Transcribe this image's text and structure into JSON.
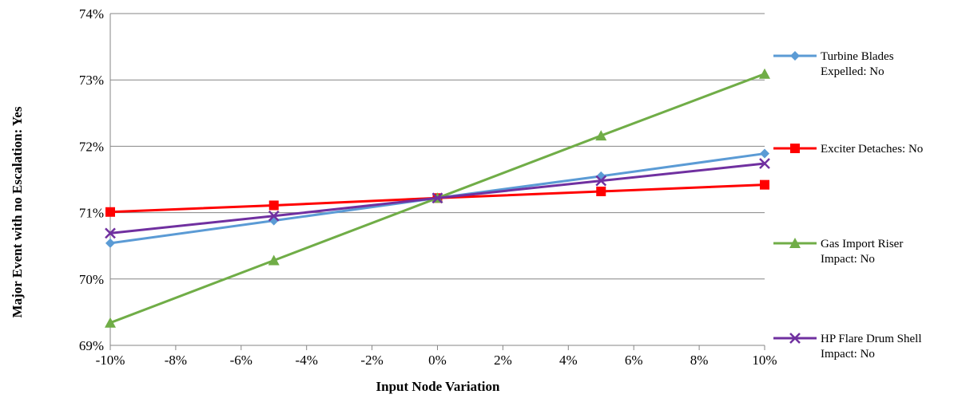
{
  "chart_data": {
    "type": "line",
    "xlabel": "Input Node Variation",
    "ylabel": "Major Event with no Escalation: Yes",
    "x": [
      -10,
      -5,
      0,
      5,
      10
    ],
    "xlim": [
      -10,
      10
    ],
    "x_ticks": [
      -10,
      -8,
      -6,
      -4,
      -2,
      0,
      2,
      4,
      6,
      8,
      10
    ],
    "x_tick_labels": [
      "-10%",
      "-8%",
      "-6%",
      "-4%",
      "-2%",
      "0%",
      "2%",
      "4%",
      "6%",
      "8%",
      "10%"
    ],
    "ylim": [
      69,
      74
    ],
    "y_ticks": [
      69,
      70,
      71,
      72,
      73,
      74
    ],
    "y_tick_labels": [
      "69%",
      "70%",
      "71%",
      "72%",
      "73%",
      "74%"
    ],
    "grid": "horizontal",
    "legend_position": "right",
    "series": [
      {
        "name": "Turbine Blades Expelled: No",
        "name_lines": [
          "Turbine Blades",
          "Expelled: No"
        ],
        "color": "#5b9bd5",
        "marker": "diamond",
        "values": [
          70.54,
          70.88,
          71.22,
          71.55,
          71.89
        ]
      },
      {
        "name": "Exciter Detaches: No",
        "name_lines": [
          "Exciter Detaches: No"
        ],
        "color": "#ff0000",
        "marker": "square",
        "values": [
          71.01,
          71.11,
          71.22,
          71.32,
          71.42
        ]
      },
      {
        "name": "Gas Import Riser Impact: No",
        "name_lines": [
          "Gas Import Riser",
          "Impact: No"
        ],
        "color": "#70ad47",
        "marker": "triangle",
        "values": [
          69.34,
          70.28,
          71.22,
          72.16,
          73.09
        ]
      },
      {
        "name": "HP Flare Drum Shell Impact: No",
        "name_lines": [
          "HP Flare Drum Shell",
          "Impact: No"
        ],
        "color": "#7030a0",
        "marker": "x",
        "values": [
          70.69,
          70.95,
          71.22,
          71.48,
          71.74
        ]
      }
    ]
  }
}
